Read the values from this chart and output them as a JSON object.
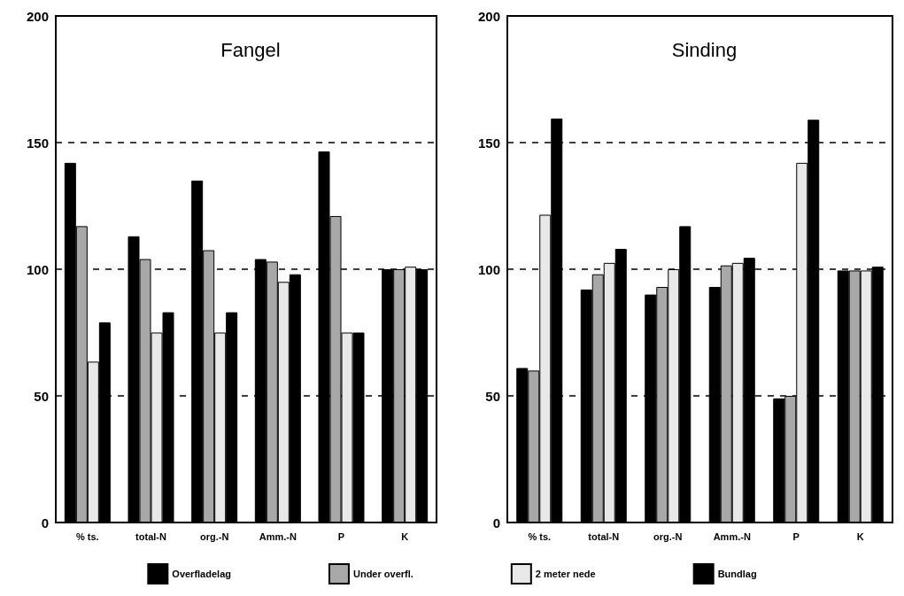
{
  "chart_data": [
    {
      "type": "bar",
      "title": "Fangel",
      "categories": [
        "% ts.",
        "total-N",
        "org.-N",
        "Amm.-N",
        "P",
        "K"
      ],
      "series": [
        {
          "color": "#000000",
          "values": [
            142,
            113,
            135,
            104,
            146.5,
            100
          ]
        },
        {
          "color": "#a8a8a8",
          "values": [
            117,
            104,
            107.5,
            103,
            121,
            100
          ]
        },
        {
          "color": "#e8e8e8",
          "values": [
            63.5,
            75,
            75,
            95,
            75,
            101
          ]
        },
        {
          "color": "#000000",
          "values": [
            79,
            83,
            83,
            98,
            75,
            100
          ]
        }
      ],
      "ylim": [
        0,
        200
      ],
      "yticks": [
        0,
        50,
        100,
        150,
        200
      ],
      "grid": "y"
    },
    {
      "type": "bar",
      "title": "Sinding",
      "categories": [
        "% ts.",
        "total-N",
        "org.-N",
        "Amm.-N",
        "P",
        "K"
      ],
      "series": [
        {
          "name": "Overfladelag",
          "color": "#000000",
          "values": [
            61,
            92,
            90,
            93,
            49,
            99.5
          ]
        },
        {
          "name": "Under overfl.",
          "color": "#a8a8a8",
          "values": [
            60,
            98,
            93,
            101.5,
            50,
            99.5
          ]
        },
        {
          "name": "2 meter nede",
          "color": "#e8e8e8",
          "values": [
            121.5,
            102.5,
            100,
            102.5,
            142,
            99.5
          ]
        },
        {
          "name": "Bundlag",
          "color": "#000000",
          "values": [
            159.5,
            108,
            117,
            104.5,
            159,
            101
          ]
        }
      ],
      "ylim": [
        0,
        200
      ],
      "yticks": [
        0,
        50,
        100,
        150,
        200
      ],
      "grid": "y",
      "legend": "bottom"
    }
  ]
}
